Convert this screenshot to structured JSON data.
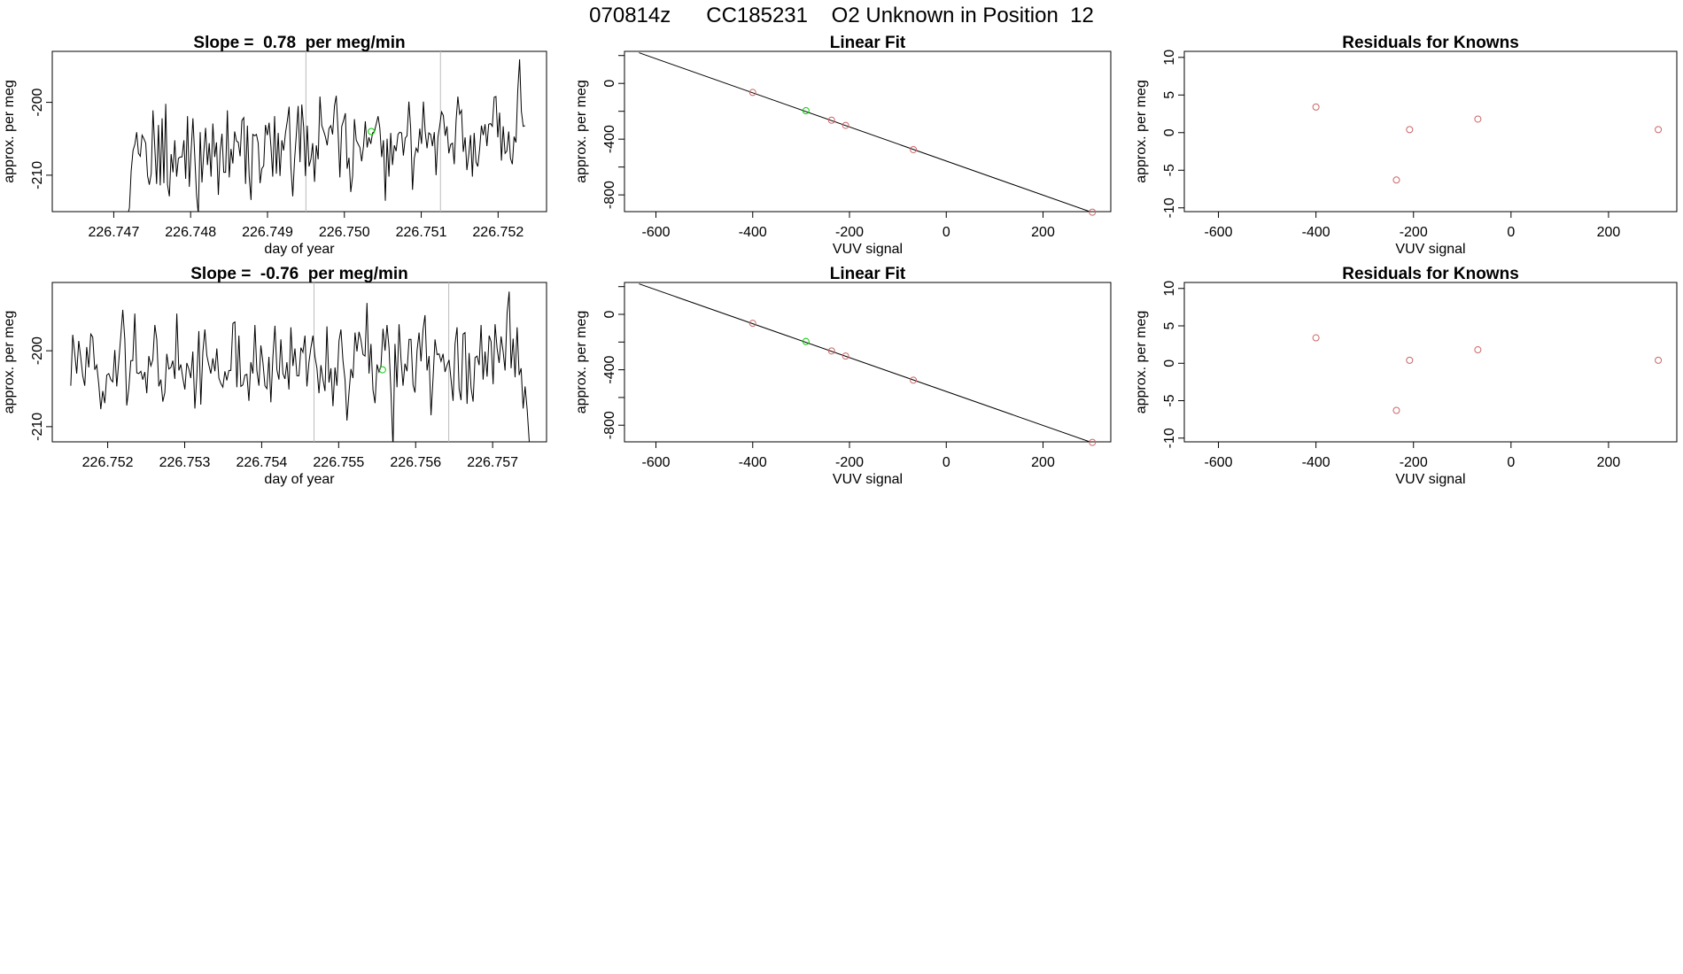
{
  "main_title": "070814z      CC185231    O2 Unknown in Position  12",
  "chart_data": [
    {
      "id": "ts1",
      "type": "line",
      "title": "Slope =  0.78  per meg/min",
      "xlabel": "day of year",
      "ylabel": "approx. per meg",
      "xlim": [
        226.7462,
        226.75263
      ],
      "ylim": [
        -215.0,
        -193.0
      ],
      "xticks": [
        226.747,
        226.748,
        226.749,
        226.75,
        226.751,
        226.752
      ],
      "xtick_labels": [
        "226.747",
        "226.748",
        "226.749",
        "226.750",
        "226.751",
        "226.752"
      ],
      "yticks": [
        -210,
        -200
      ],
      "ytick_labels": [
        "-210",
        "-200"
      ],
      "vlines": [
        226.7495,
        226.75125
      ],
      "marker": {
        "x": 226.75035,
        "y": -204.0,
        "color": "#00cc00"
      },
      "grid": false,
      "line": {
        "color": "#000000"
      },
      "series": [
        {
          "x0": 226.74718,
          "x1": 226.75235,
          "values": [
            -215.5,
            -214.5,
            -209.4,
            -206.6,
            -205.8,
            -204.1,
            -207.0,
            -207.4,
            -204.5,
            -205.0,
            -205.6,
            -210.1,
            -211.3,
            -209.8,
            -201.1,
            -206.3,
            -211.2,
            -203.1,
            -211.4,
            -202.2,
            -211.1,
            -200.2,
            -211.3,
            -212.9,
            -207.1,
            -209.6,
            -205.2,
            -210.2,
            -207.7,
            -207.5,
            -207.5,
            -205.2,
            -210.5,
            -201.9,
            -211.6,
            -206.8,
            -202.2,
            -207.2,
            -212.7,
            -215.4,
            -204.1,
            -211.0,
            -206.8,
            -203.5,
            -208.6,
            -205.6,
            -210.2,
            -202.9,
            -207.5,
            -205.5,
            -212.7,
            -206.8,
            -204.3,
            -209.6,
            -209.6,
            -201.1,
            -210.3,
            -206.4,
            -208.4,
            -204.0,
            -205.3,
            -205.5,
            -207.4,
            -202.5,
            -202.1,
            -211.2,
            -203.2,
            -210.1,
            -213.4,
            -204.4,
            -204.6,
            -204.4,
            -205.6,
            -211.1,
            -209.1,
            -208.7,
            -203.1,
            -204.5,
            -202.8,
            -206.1,
            -210.2,
            -201.9,
            -209.8,
            -204.2,
            -210.1,
            -205.2,
            -206.6,
            -204.2,
            -202.6,
            -200.6,
            -208.9,
            -212.9,
            -208.0,
            -204.3,
            -200.5,
            -208.2,
            -200.3,
            -203.4,
            -210.1,
            -203.2,
            -208.8,
            -207.8,
            -205.6,
            -210.9,
            -205.9,
            -207.8,
            -199.2,
            -203.2,
            -203.9,
            -204.7,
            -205.9,
            -203.6,
            -203.2,
            -204.4,
            -200.5,
            -199.1,
            -204.1,
            -210.3,
            -203.3,
            -202.5,
            -201.5,
            -209.1,
            -207.6,
            -212.3,
            -210.1,
            -202.3,
            -205.2,
            -205.7,
            -206.2,
            -208.1,
            -206.0,
            -202.6,
            -206.2,
            -204.8,
            -205.7,
            -204.2,
            -204.0,
            -203.0,
            -201.9,
            -203.5,
            -207.5,
            -205.2,
            -213.5,
            -205.0,
            -210.2,
            -204.2,
            -208.6,
            -205.9,
            -206.7,
            -204.4,
            -204.1,
            -204.2,
            -207.3,
            -204.9,
            -204.6,
            -199.9,
            -203.5,
            -212.0,
            -207.7,
            -206.3,
            -206.8,
            -203.6,
            -205.7,
            -199.9,
            -204.0,
            -206.3,
            -204.2,
            -204.4,
            -206.0,
            -204.1,
            -210.0,
            -204.8,
            -203.2,
            -201.3,
            -201.8,
            -204.6,
            -203.3,
            -207.0,
            -205.8,
            -205.6,
            -208.5,
            -202.5,
            -199.2,
            -201.6,
            -201.1,
            -206.8,
            -204.8,
            -209.3,
            -207.2,
            -204.5,
            -210.2,
            -204.2,
            -208.2,
            -208.8,
            -206.4,
            -203.2,
            -204.5,
            -203.0,
            -206.0,
            -203.0,
            -202.9,
            -203.3,
            -199.3,
            -199.2,
            -204.8,
            -201.4,
            -208.0,
            -203.3,
            -207.0,
            -206.7,
            -204.0,
            -207.7,
            -208.5,
            -204.7,
            -205.5,
            -198.4,
            -194.1,
            -201.2,
            -203.3,
            -203.2
          ]
        }
      ]
    },
    {
      "id": "fit1",
      "type": "scatter",
      "title": "Linear Fit",
      "xlabel": "VUV signal",
      "ylabel": "approx. per meg",
      "xlim": [
        -665,
        340
      ],
      "ylim": [
        -920,
        230
      ],
      "xticks": [
        -600,
        -400,
        -200,
        0,
        200
      ],
      "xtick_labels": [
        "-600",
        "-400",
        "-200",
        "0",
        "200"
      ],
      "yticks": [
        -800,
        -400,
        0
      ],
      "ytick_labels": [
        "-800",
        "-400",
        "0"
      ],
      "minor_yticks": [
        -600,
        -200,
        200
      ],
      "grid": false,
      "fit_line": {
        "x": [
          -635,
          305
        ],
        "y": [
          220,
          -930
        ]
      },
      "knowns": {
        "color": "#cc6666",
        "x": [
          -400,
          -237,
          -208,
          -68,
          302
        ],
        "y": [
          -65,
          -264,
          -301,
          -475,
          -924
        ]
      },
      "unknown": {
        "color": "#00cc00",
        "x": [
          -290
        ],
        "y": [
          -196
        ]
      }
    },
    {
      "id": "res1",
      "type": "scatter",
      "title": "Residuals for Knowns",
      "xlabel": "VUV signal",
      "ylabel": "approx. per meg",
      "xlim": [
        -670,
        340
      ],
      "ylim": [
        -10.5,
        10.8
      ],
      "xticks": [
        -600,
        -400,
        -200,
        0,
        200
      ],
      "xtick_labels": [
        "-600",
        "-400",
        "-200",
        "0",
        "200"
      ],
      "yticks": [
        -10,
        -5,
        0,
        5,
        10
      ],
      "ytick_labels": [
        "-10",
        "-5",
        "0",
        "5",
        "10"
      ],
      "grid": false,
      "points": {
        "color": "#cc6666",
        "x": [
          -400,
          -235,
          -208,
          -68,
          302
        ],
        "y": [
          3.4,
          -6.3,
          0.4,
          1.8,
          0.4
        ]
      }
    },
    {
      "id": "ts2",
      "type": "line",
      "title": "Slope =  -0.76  per meg/min",
      "xlabel": "day of year",
      "ylabel": "approx. per meg",
      "xlim": [
        226.75128,
        226.7577
      ],
      "ylim": [
        -212.0,
        -191.0
      ],
      "xticks": [
        226.752,
        226.753,
        226.754,
        226.755,
        226.756,
        226.757
      ],
      "xtick_labels": [
        "226.752",
        "226.753",
        "226.754",
        "226.755",
        "226.756",
        "226.757"
      ],
      "yticks": [
        -210,
        -200
      ],
      "ytick_labels": [
        "-210",
        "-200"
      ],
      "vlines": [
        226.75468,
        226.75643
      ],
      "marker": {
        "x": 226.75557,
        "y": -202.5,
        "color": "#00cc00"
      },
      "grid": false,
      "line": {
        "color": "#000000"
      },
      "series": [
        {
          "x0": 226.75152,
          "x1": 226.7575,
          "values": [
            -204.6,
            -197.9,
            -200.4,
            -203.0,
            -198.7,
            -200.9,
            -203.3,
            -204.6,
            -199.5,
            -202.2,
            -197.8,
            -198.2,
            -202.5,
            -201.9,
            -204.4,
            -207.7,
            -205.3,
            -206.9,
            -203.2,
            -203.0,
            -203.8,
            -204.1,
            -199.9,
            -204.7,
            -201.4,
            -198.0,
            -194.6,
            -198.5,
            -207.2,
            -205.0,
            -201.3,
            -201.3,
            -195.1,
            -202.9,
            -203.0,
            -202.7,
            -203.8,
            -202.8,
            -205.6,
            -200.7,
            -202.0,
            -201.2,
            -196.6,
            -198.5,
            -204.7,
            -203.8,
            -206.7,
            -205.5,
            -200.4,
            -202.4,
            -202.2,
            -201.3,
            -203.7,
            -195.1,
            -202.6,
            -201.8,
            -203.6,
            -205.1,
            -201.6,
            -202.4,
            -203.6,
            -200.1,
            -207.6,
            -203.4,
            -197.4,
            -207.1,
            -200.2,
            -197.2,
            -200.6,
            -201.9,
            -203.0,
            -201.0,
            -202.7,
            -199.7,
            -203.6,
            -204.3,
            -204.8,
            -202.7,
            -203.9,
            -202.6,
            -202.6,
            -196.4,
            -196.2,
            -204.8,
            -198.0,
            -204.7,
            -204.5,
            -203.2,
            -203.1,
            -206.6,
            -201.5,
            -203.0,
            -196.6,
            -202.6,
            -204.6,
            -199.3,
            -201.5,
            -204.6,
            -205.0,
            -200.8,
            -206.8,
            -200.8,
            -196.7,
            -202.5,
            -203.8,
            -198.5,
            -203.0,
            -203.7,
            -201.5,
            -205.1,
            -196.9,
            -202.0,
            -199.7,
            -203.3,
            -203.3,
            -199.6,
            -200.2,
            -198.0,
            -204.7,
            -201.5,
            -199.6,
            -198.0,
            -200.8,
            -202.3,
            -205.6,
            -201.9,
            -203.8,
            -205.3,
            -196.8,
            -204.2,
            -202.3,
            -207.3,
            -202.2,
            -204.6,
            -198.7,
            -197.2,
            -201.3,
            -203.8,
            -209.2,
            -205.5,
            -202.4,
            -203.6,
            -197.6,
            -200.1,
            -197.5,
            -198.6,
            -200.5,
            -200.7,
            -193.7,
            -203.0,
            -199.1,
            -205.2,
            -206.9,
            -201.8,
            -202.8,
            -202.0,
            -197.1,
            -200.0,
            -196.6,
            -199.6,
            -205.5,
            -212.9,
            -199.1,
            -204.8,
            -196.5,
            -201.1,
            -204.6,
            -201.7,
            -202.7,
            -198.5,
            -198.5,
            -204.5,
            -205.5,
            -200.0,
            -197.6,
            -201.4,
            -197.2,
            -195.3,
            -202.6,
            -200.7,
            -208.5,
            -203.6,
            -198.5,
            -200.5,
            -200.4,
            -201.4,
            -200.4,
            -202.8,
            -201.9,
            -201.2,
            -203.8,
            -206.6,
            -199.1,
            -196.9,
            -205.0,
            -206.5,
            -197.8,
            -197.6,
            -207.0,
            -200.3,
            -204.9,
            -206.7,
            -200.9,
            -200.7,
            -201.9,
            -196.6,
            -203.8,
            -200.1,
            -203.4,
            -198.0,
            -198.8,
            -204.4,
            -196.5,
            -199.7,
            -201.6,
            -198.1,
            -200.1,
            -202.6,
            -195.0,
            -192.2,
            -202.3,
            -198.4,
            -203.5,
            -196.9,
            -203.2,
            -202.3,
            -207.6,
            -204.7,
            -207.7,
            -211.8,
            -215.0
          ]
        }
      ]
    },
    {
      "id": "fit2",
      "type": "scatter",
      "title": "Linear Fit",
      "xlabel": "VUV signal",
      "ylabel": "approx. per meg",
      "xlim": [
        -665,
        340
      ],
      "ylim": [
        -920,
        230
      ],
      "xticks": [
        -600,
        -400,
        -200,
        0,
        200
      ],
      "xtick_labels": [
        "-600",
        "-400",
        "-200",
        "0",
        "200"
      ],
      "yticks": [
        -800,
        -400,
        0
      ],
      "ytick_labels": [
        "-800",
        "-400",
        "0"
      ],
      "minor_yticks": [
        -600,
        -200,
        200
      ],
      "grid": false,
      "fit_line": {
        "x": [
          -635,
          305
        ],
        "y": [
          220,
          -930
        ]
      },
      "knowns": {
        "color": "#cc6666",
        "x": [
          -400,
          -237,
          -208,
          -68,
          302
        ],
        "y": [
          -65,
          -264,
          -301,
          -475,
          -924
        ]
      },
      "unknown": {
        "color": "#00cc00",
        "x": [
          -290
        ],
        "y": [
          -196
        ]
      }
    },
    {
      "id": "res2",
      "type": "scatter",
      "title": "Residuals for Knowns",
      "xlabel": "VUV signal",
      "ylabel": "approx. per meg",
      "xlim": [
        -670,
        340
      ],
      "ylim": [
        -10.5,
        10.8
      ],
      "xticks": [
        -600,
        -400,
        -200,
        0,
        200
      ],
      "xtick_labels": [
        "-600",
        "-400",
        "-200",
        "0",
        "200"
      ],
      "yticks": [
        -10,
        -5,
        0,
        5,
        10
      ],
      "ytick_labels": [
        "-10",
        "-5",
        "0",
        "5",
        "10"
      ],
      "grid": false,
      "points": {
        "color": "#cc6666",
        "x": [
          -400,
          -235,
          -208,
          -68,
          302
        ],
        "y": [
          3.4,
          -6.3,
          0.4,
          1.8,
          0.4
        ]
      }
    }
  ]
}
